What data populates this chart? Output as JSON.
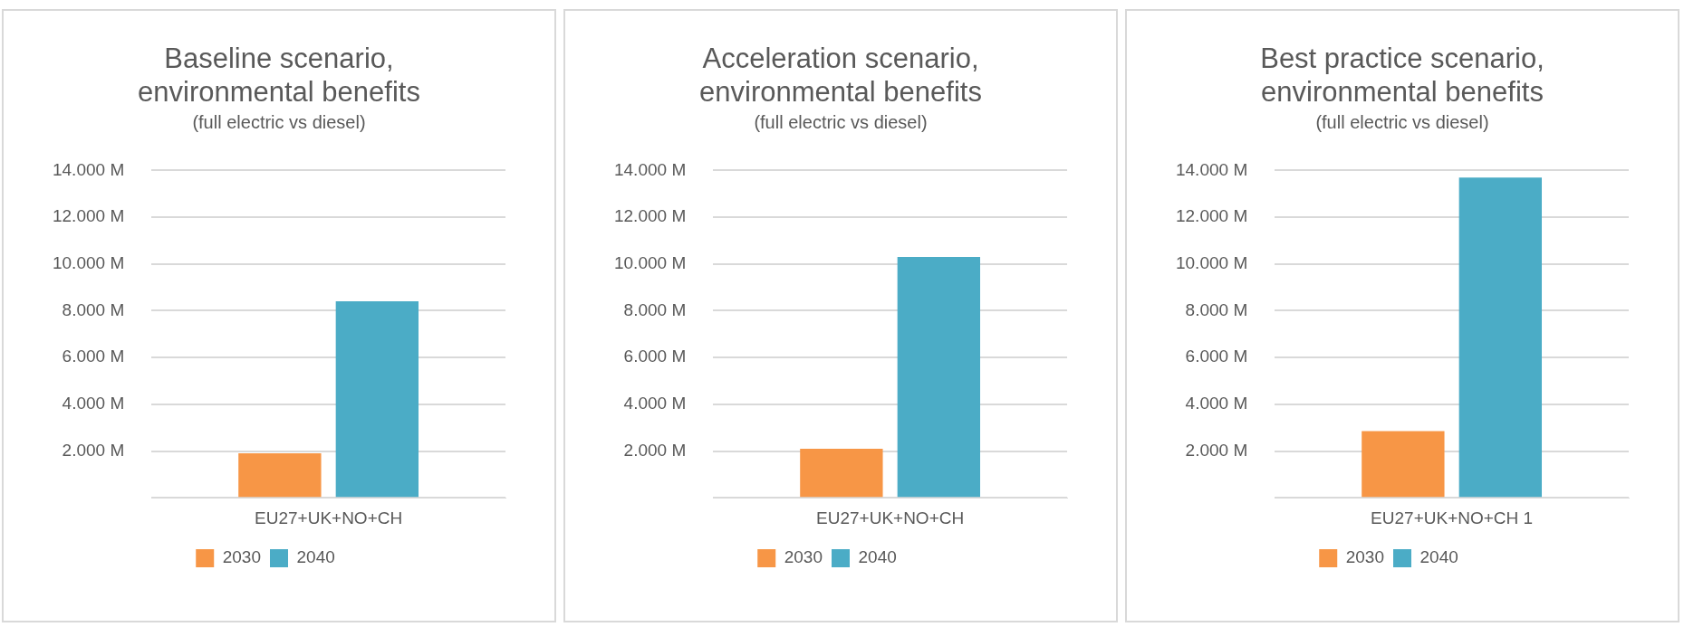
{
  "chart_data": [
    {
      "type": "bar",
      "title": "Baseline scenario, environmental benefits",
      "subtitle": "(full electric vs diesel)",
      "categories": [
        "EU27+UK+NO+CH"
      ],
      "series": [
        {
          "name": "2030",
          "color": "#f79646",
          "values": [
            1.9
          ]
        },
        {
          "name": "2040",
          "color": "#4bacc6",
          "values": [
            8.4
          ]
        }
      ],
      "ylim": [
        0,
        14
      ],
      "yticks": [
        {
          "value": 0,
          "label": null
        },
        {
          "value": 2,
          "label": "2.000 M"
        },
        {
          "value": 4,
          "label": "4.000 M"
        },
        {
          "value": 6,
          "label": "6.000 M"
        },
        {
          "value": 8,
          "label": "8.000 M"
        },
        {
          "value": 10,
          "label": "10.000 M"
        },
        {
          "value": 12,
          "label": "12.000 M"
        },
        {
          "value": 14,
          "label": "14.000 M"
        }
      ],
      "grid": "y",
      "legend": "bottom"
    },
    {
      "type": "bar",
      "title": "Acceleration scenario, environmental benefits",
      "subtitle": "(full electric vs diesel)",
      "categories": [
        "EU27+UK+NO+CH"
      ],
      "series": [
        {
          "name": "2030",
          "color": "#f79646",
          "values": [
            2.1
          ]
        },
        {
          "name": "2040",
          "color": "#4bacc6",
          "values": [
            10.3
          ]
        }
      ],
      "ylim": [
        0,
        14
      ],
      "yticks": [
        {
          "value": 0,
          "label": null
        },
        {
          "value": 2,
          "label": "2.000 M"
        },
        {
          "value": 4,
          "label": "4.000 M"
        },
        {
          "value": 6,
          "label": "6.000 M"
        },
        {
          "value": 8,
          "label": "8.000 M"
        },
        {
          "value": 10,
          "label": "10.000 M"
        },
        {
          "value": 12,
          "label": "12.000 M"
        },
        {
          "value": 14,
          "label": "14.000 M"
        }
      ],
      "grid": "y",
      "legend": "bottom"
    },
    {
      "type": "bar",
      "title": "Best practice scenario, environmental benefits",
      "subtitle": "(full electric vs diesel)",
      "categories": [
        "EU27+UK+NO+CH 1"
      ],
      "series": [
        {
          "name": "2030",
          "color": "#f79646",
          "values": [
            2.85
          ]
        },
        {
          "name": "2040",
          "color": "#4bacc6",
          "values": [
            13.7
          ]
        }
      ],
      "ylim": [
        0,
        14
      ],
      "yticks": [
        {
          "value": 0,
          "label": null
        },
        {
          "value": 2,
          "label": "2.000 M"
        },
        {
          "value": 4,
          "label": "4.000 M"
        },
        {
          "value": 6,
          "label": "6.000 M"
        },
        {
          "value": 8,
          "label": "8.000 M"
        },
        {
          "value": 10,
          "label": "10.000 M"
        },
        {
          "value": 12,
          "label": "12.000 M"
        },
        {
          "value": 14,
          "label": "14.000 M"
        }
      ],
      "grid": "y",
      "legend": "bottom"
    }
  ]
}
